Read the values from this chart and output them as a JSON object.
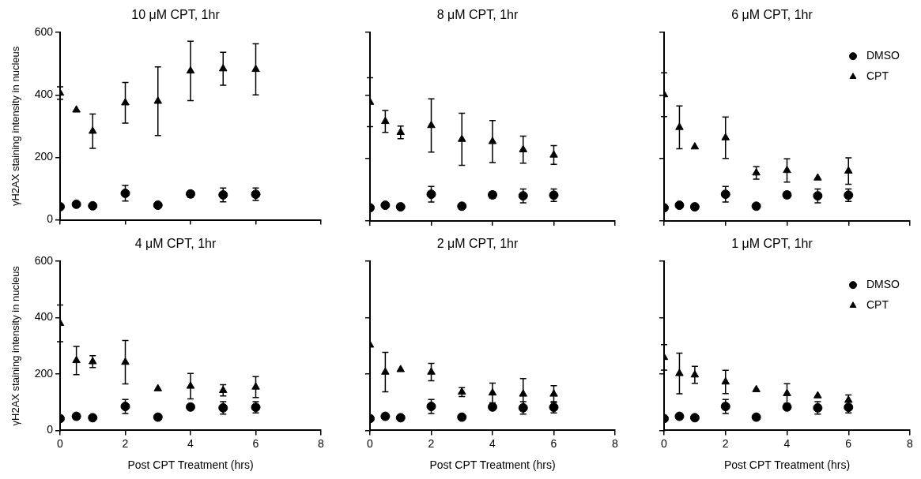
{
  "chart_data": [
    {
      "type": "scatter",
      "title": "10 μM CPT, 1hr",
      "ylabel": "γH2AX staining intensity in nucleus",
      "xlim": [
        0,
        8
      ],
      "xticks": [
        0,
        2,
        4,
        6,
        8
      ],
      "ylim": [
        0,
        600
      ],
      "yticks": [
        0,
        200,
        400,
        600
      ],
      "tick_labels": "y",
      "grid": false,
      "legend": false,
      "x": [
        0,
        0.5,
        1,
        2,
        3,
        4,
        5,
        6
      ],
      "series": [
        {
          "color": "#000000",
          "marker": "circle",
          "values": [
            42,
            50,
            45,
            85,
            47,
            83,
            80,
            82
          ],
          "errors": [
            null,
            8,
            null,
            25,
            null,
            10,
            22,
            20
          ]
        },
        {
          "color": "#000000",
          "marker": "triangle",
          "values": [
            406,
            352,
            284,
            375,
            380,
            477,
            484,
            482
          ],
          "errors": [
            20,
            null,
            55,
            65,
            110,
            95,
            53,
            82
          ]
        }
      ]
    },
    {
      "type": "scatter",
      "title": "8 μM CPT, 1hr",
      "xlim": [
        0,
        8
      ],
      "xticks": [
        0,
        2,
        4,
        6,
        8
      ],
      "ylim": [
        0,
        600
      ],
      "yticks": [
        0,
        200,
        400,
        600
      ],
      "tick_labels": false,
      "grid": false,
      "legend": false,
      "x": [
        0,
        0.5,
        1,
        2,
        3,
        4,
        5,
        6
      ],
      "series": [
        {
          "color": "#000000",
          "marker": "circle",
          "values": [
            42,
            50,
            45,
            85,
            47,
            83,
            80,
            82
          ],
          "errors": [
            null,
            8,
            null,
            25,
            null,
            10,
            22,
            20
          ]
        },
        {
          "color": "#000000",
          "marker": "triangle",
          "values": [
            378,
            317,
            282,
            304,
            260,
            253,
            227,
            210
          ],
          "errors": [
            78,
            35,
            20,
            85,
            83,
            67,
            43,
            30
          ]
        }
      ]
    },
    {
      "type": "scatter",
      "title": "6 μM CPT, 1hr",
      "xlim": [
        0,
        8
      ],
      "xticks": [
        0,
        2,
        4,
        6,
        8
      ],
      "ylim": [
        0,
        600
      ],
      "yticks": [
        0,
        200,
        400,
        600
      ],
      "tick_labels": false,
      "grid": false,
      "legend": "top right",
      "x": [
        0,
        0.5,
        1,
        2,
        3,
        4,
        5,
        6
      ],
      "series": [
        {
          "name": "DMSO",
          "color": "#000000",
          "marker": "circle",
          "values": [
            42,
            50,
            45,
            85,
            47,
            83,
            80,
            82
          ],
          "errors": [
            null,
            8,
            null,
            25,
            null,
            10,
            22,
            20
          ]
        },
        {
          "name": "CPT",
          "color": "#000000",
          "marker": "triangle",
          "values": [
            402,
            298,
            236,
            265,
            153,
            161,
            137,
            159
          ],
          "errors": [
            70,
            68,
            null,
            66,
            20,
            37,
            null,
            42
          ]
        }
      ]
    },
    {
      "type": "scatter",
      "title": "4 μM CPT, 1hr",
      "xlabel": "Post CPT Treatment (hrs)",
      "ylabel": "γH2AX staining intensity in nucleus",
      "xlim": [
        0,
        8
      ],
      "xticks": [
        0,
        2,
        4,
        6,
        8
      ],
      "ylim": [
        0,
        600
      ],
      "yticks": [
        0,
        200,
        400,
        600
      ],
      "grid": false,
      "legend": false,
      "x": [
        0,
        0.5,
        1,
        2,
        3,
        4,
        5,
        6
      ],
      "series": [
        {
          "color": "#000000",
          "marker": "circle",
          "values": [
            42,
            50,
            45,
            85,
            47,
            83,
            80,
            82
          ],
          "errors": [
            null,
            8,
            null,
            25,
            null,
            10,
            22,
            20
          ]
        },
        {
          "color": "#000000",
          "marker": "triangle",
          "values": [
            380,
            248,
            244,
            242,
            148,
            157,
            142,
            154
          ],
          "errors": [
            65,
            50,
            21,
            77,
            null,
            45,
            20,
            37
          ]
        }
      ]
    },
    {
      "type": "scatter",
      "title": "2 μM CPT, 1hr",
      "xlabel": "Post CPT Treatment (hrs)",
      "xlim": [
        0,
        8
      ],
      "xticks": [
        0,
        2,
        4,
        6,
        8
      ],
      "ylim": [
        0,
        600
      ],
      "yticks": [
        0,
        200,
        400,
        600
      ],
      "tick_labels": "x",
      "grid": false,
      "legend": false,
      "x": [
        0,
        0.5,
        1,
        2,
        3,
        4,
        5,
        6
      ],
      "series": [
        {
          "color": "#000000",
          "marker": "circle",
          "values": [
            42,
            50,
            45,
            85,
            47,
            83,
            80,
            82
          ],
          "errors": [
            null,
            8,
            null,
            25,
            null,
            10,
            22,
            20
          ]
        },
        {
          "color": "#000000",
          "marker": "triangle",
          "values": [
            303,
            207,
            216,
            207,
            136,
            133,
            129,
            129
          ],
          "errors": [
            null,
            70,
            null,
            31,
            16,
            35,
            55,
            30
          ]
        }
      ]
    },
    {
      "type": "scatter",
      "title": "1 μM CPT, 1hr",
      "xlabel": "Post CPT Treatment (hrs)",
      "xlim": [
        0,
        8
      ],
      "xticks": [
        0,
        2,
        4,
        6,
        8
      ],
      "ylim": [
        0,
        600
      ],
      "yticks": [
        0,
        200,
        400,
        600
      ],
      "tick_labels": "x",
      "grid": false,
      "legend": "top right",
      "x": [
        0,
        0.5,
        1,
        2,
        3,
        4,
        5,
        6
      ],
      "series": [
        {
          "name": "DMSO",
          "color": "#000000",
          "marker": "circle",
          "values": [
            42,
            50,
            45,
            85,
            47,
            83,
            80,
            82
          ],
          "errors": [
            null,
            8,
            null,
            25,
            null,
            10,
            22,
            20
          ]
        },
        {
          "name": "CPT",
          "color": "#000000",
          "marker": "triangle",
          "values": [
            259,
            202,
            197,
            172,
            145,
            131,
            123,
            107
          ],
          "errors": [
            45,
            72,
            30,
            41,
            null,
            35,
            null,
            19
          ]
        }
      ]
    }
  ]
}
